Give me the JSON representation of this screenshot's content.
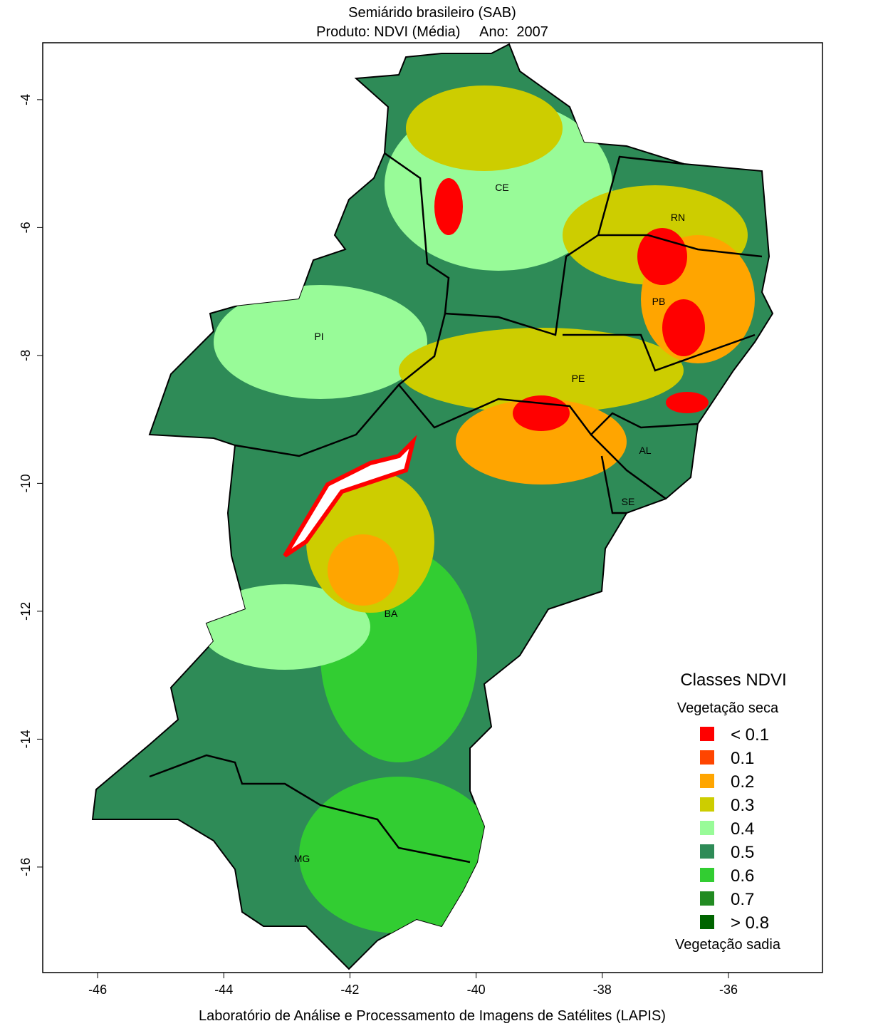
{
  "map": {
    "title": "Semiárido brasileiro (SAB)",
    "subtitle": "Produto: NDVI (Média)     Ano:  2007",
    "caption": "Laboratório de Análise e Processamento de Imagens de Satélites (LAPIS)",
    "xlim": [
      -46.87,
      -34.51
    ],
    "ylim": [
      -17.65,
      -3.11
    ],
    "xticks": [
      -46,
      -44,
      -42,
      -40,
      -38,
      -36
    ],
    "yticks": [
      -4,
      -6,
      -8,
      -10,
      -12,
      -14,
      -16
    ],
    "states": [
      "CE",
      "RN",
      "PB",
      "PI",
      "PE",
      "AL",
      "SE",
      "BA",
      "MG"
    ],
    "legend": {
      "title": "Classes NDVI",
      "top_label": "Vegetação seca",
      "bottom_label": "Vegetação sadia",
      "items": [
        {
          "label": "< 0.1",
          "color": "#ff0000"
        },
        {
          "label": "0.1",
          "color": "#ff4500"
        },
        {
          "label": "0.2",
          "color": "#ffa500"
        },
        {
          "label": "0.3",
          "color": "#cdcd00"
        },
        {
          "label": "0.4",
          "color": "#98fb98"
        },
        {
          "label": "0.5",
          "color": "#2e8b57"
        },
        {
          "label": "0.6",
          "color": "#32cd32"
        },
        {
          "label": "0.7",
          "color": "#228b22"
        },
        {
          "label": "> 0.8",
          "color": "#006400"
        }
      ]
    }
  }
}
